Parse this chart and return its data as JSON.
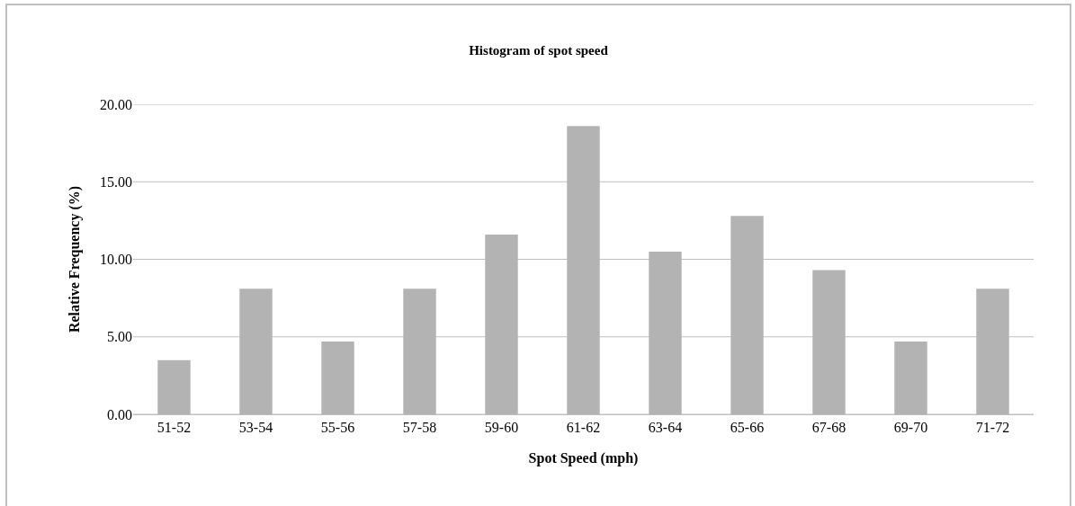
{
  "chart_data": {
    "type": "bar",
    "title": "Histogram of spot speed",
    "xlabel": "Spot Speed (mph)",
    "ylabel": "Relative Frequency (%)",
    "categories": [
      "51-52",
      "53-54",
      "55-56",
      "57-58",
      "59-60",
      "61-62",
      "63-64",
      "65-66",
      "67-68",
      "69-70",
      "71-72"
    ],
    "values": [
      3.5,
      8.1,
      4.7,
      8.1,
      11.6,
      18.6,
      10.5,
      12.8,
      9.3,
      4.7,
      8.1
    ],
    "color": "#b3b3b3",
    "ylim": [
      0,
      20
    ],
    "yticks": [
      {
        "value": 0,
        "label": "0.00"
      },
      {
        "value": 5,
        "label": "5.00"
      },
      {
        "value": 10,
        "label": "10.00"
      },
      {
        "value": 15,
        "label": "15.00"
      },
      {
        "value": 20,
        "label": "20.00"
      }
    ],
    "grid": "y"
  }
}
